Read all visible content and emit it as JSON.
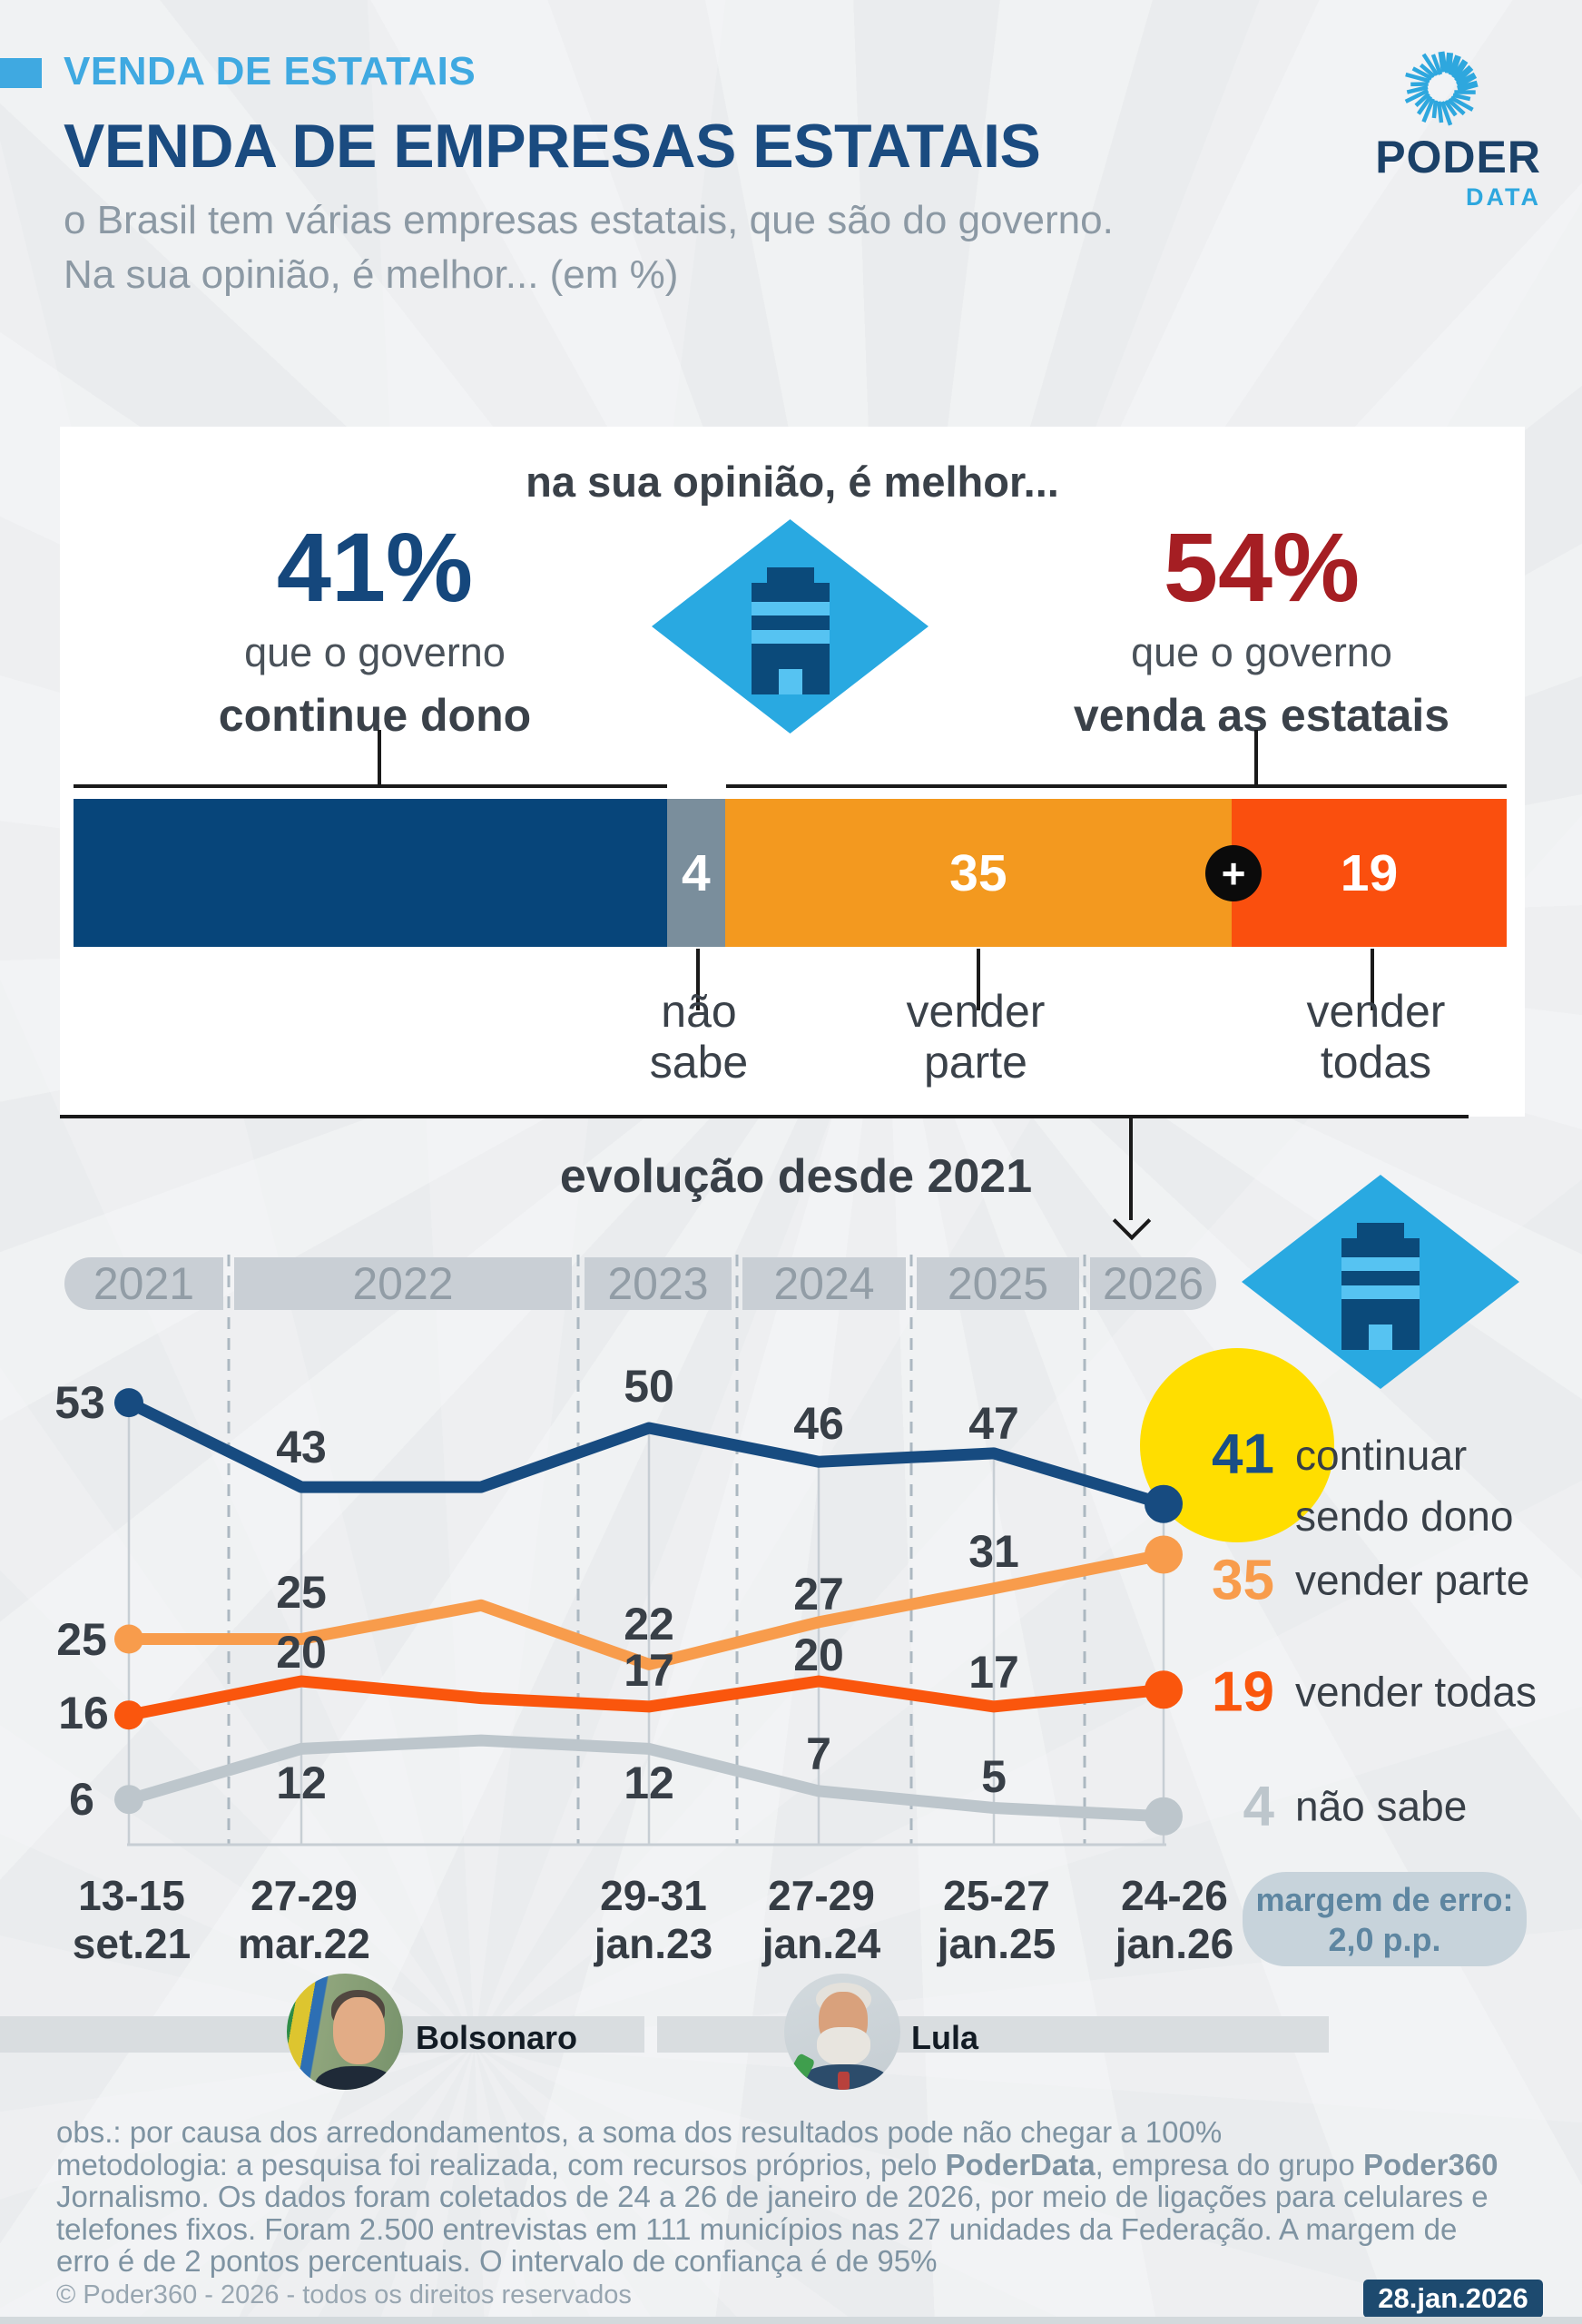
{
  "colors": {
    "background": "#EAECEE",
    "accent_lightblue": "#3FA9E1",
    "title_navy": "#1A4B80",
    "red_pct": "#A51E23",
    "bar_navy": "#07457A",
    "bar_gray": "#7A8E9C",
    "bar_orange": "#F3991F",
    "bar_red": "#FA4F0E",
    "line_navy": "#174B80",
    "line_orange": "#F89C4C",
    "line_red": "#FA560D",
    "line_gray": "#BDC6CC",
    "highlight_yellow": "#FFDE00"
  },
  "header": {
    "eyebrow": "VENDA DE ESTATAIS",
    "title": "VENDA DE EMPRESAS ESTATAIS",
    "subtitle_line1": "o Brasil tem várias empresas estatais, que são do governo.",
    "subtitle_line2": "Na sua opinião, é melhor... (em %)",
    "logo_brand": "PODER",
    "logo_sub": "DATA"
  },
  "card": {
    "question": "na sua opinião, é melhor...",
    "left": {
      "pct": "41%",
      "line1": "que o governo",
      "line2": "continue dono"
    },
    "right": {
      "pct": "54%",
      "line1": "que o governo",
      "line2": "venda as estatais"
    },
    "plus_label": "+",
    "below_labels": [
      {
        "line1": "não",
        "line2": "sabe",
        "x": 770
      },
      {
        "line1": "vender",
        "line2": "parte",
        "x": 1075
      },
      {
        "line1": "vender",
        "line2": "todas",
        "x": 1516
      }
    ]
  },
  "evolution": {
    "title": "evolução desde 2021",
    "years": [
      "2021",
      "2022",
      "2023",
      "2024",
      "2025",
      "2026"
    ],
    "x_axis": [
      {
        "line1": "13-15",
        "line2": "set.21"
      },
      {
        "line1": "27-29",
        "line2": "mar.22"
      },
      {
        "line1": "29-31",
        "line2": "jan.23"
      },
      {
        "line1": "27-29",
        "line2": "jan.24"
      },
      {
        "line1": "25-27",
        "line2": "jan.25"
      },
      {
        "line1": "24-26",
        "line2": "jan.26"
      }
    ],
    "margin_note": {
      "line1": "margem de erro:",
      "line2": "2,0 p.p."
    }
  },
  "presidents": [
    {
      "name": "Bolsonaro"
    },
    {
      "name": "Lula"
    }
  ],
  "footer": {
    "obs": "obs.: por causa dos arredondamentos, a soma dos resultados pode não chegar a 100%",
    "methodology_p1": "metodologia: a pesquisa foi realizada, com recursos próprios, pelo ",
    "methodology_b1": "PoderData",
    "methodology_p2": ", empresa do grupo ",
    "methodology_b2": "Poder360",
    "methodology_p3": " Jornalismo. Os dados foram coletados de 24 a 26 de janeiro de 2026, por meio de ligações para celulares e telefones fixos. Foram 2.500 entrevistas em 111 municípios nas 27 unidades da Federação. A margem de erro é de 2 pontos percentuais. O intervalo de confiança é de 95%",
    "copyright": "© Poder360 - 2026 - todos os direitos reservados",
    "date_badge": "28.jan.2026"
  },
  "chart_data": [
    {
      "type": "bar",
      "variant": "stacked-horizontal",
      "title": "na sua opinião, é melhor...",
      "categories": [
        "que o governo continue dono",
        "não sabe",
        "vender parte",
        "vender todas"
      ],
      "values": [
        41,
        4,
        35,
        19
      ],
      "colors": [
        "#07457A",
        "#7A8E9C",
        "#F3991F",
        "#FA4F0E"
      ],
      "show_value": [
        false,
        true,
        true,
        true
      ],
      "summary": {
        "continue_dono": "41%",
        "venda_estatais": "54%"
      }
    },
    {
      "type": "line",
      "title": "evolução desde 2021",
      "x": [
        "13-15 set.21",
        "27-29 mar.22",
        "",
        "29-31 jan.23",
        "27-29 jan.24",
        "25-27 jan.25",
        "24-26 jan.26"
      ],
      "ylim": [
        0,
        60
      ],
      "grid": "vertical-per-survey",
      "legend_position": "right",
      "highlight": {
        "series": "continuar sendo dono",
        "point": "24-26 jan.26",
        "color": "#FFDE00"
      },
      "series": [
        {
          "name": "continuar sendo dono",
          "color": "#174B80",
          "values": [
            53,
            43,
            43,
            50,
            46,
            47,
            41
          ],
          "point_labels": [
            "53",
            "43",
            "",
            "50",
            "46",
            "47",
            ""
          ],
          "final_label": "41",
          "legend_lines": [
            "continuar",
            "sendo dono"
          ]
        },
        {
          "name": "vender parte",
          "color": "#F89C4C",
          "values": [
            25,
            25,
            29,
            22,
            27,
            31,
            35
          ],
          "point_labels": [
            "25",
            "25",
            "",
            "22",
            "27",
            "31",
            ""
          ],
          "final_label": "35",
          "legend_lines": [
            "vender parte"
          ]
        },
        {
          "name": "vender todas",
          "color": "#FA560D",
          "values": [
            16,
            20,
            18,
            17,
            20,
            17,
            19
          ],
          "point_labels": [
            "16",
            "20",
            "",
            "17",
            "20",
            "17",
            ""
          ],
          "final_label": "19",
          "legend_lines": [
            "vender todas"
          ]
        },
        {
          "name": "não sabe",
          "color": "#BDC6CC",
          "values": [
            6,
            12,
            13,
            12,
            7,
            5,
            4
          ],
          "point_labels": [
            "6",
            "12",
            "",
            "12",
            "7",
            "5",
            ""
          ],
          "final_label": "4",
          "legend_lines": [
            "não sabe"
          ]
        }
      ]
    }
  ]
}
